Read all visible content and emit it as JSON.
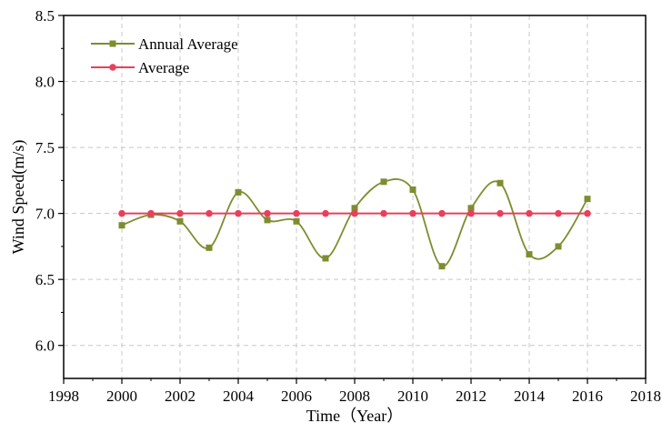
{
  "chart_data": {
    "type": "line",
    "title": "",
    "xlabel": "Time（Year）",
    "ylabel": "Wind Speed(m/s)",
    "xlim": [
      1998,
      2018
    ],
    "ylim": [
      5.75,
      8.5
    ],
    "xticks": [
      1998,
      2000,
      2002,
      2004,
      2006,
      2008,
      2010,
      2012,
      2014,
      2016,
      2018
    ],
    "yticks": [
      6.0,
      6.5,
      7.0,
      7.5,
      8.0,
      8.5
    ],
    "xtick_labels": [
      "1998",
      "2000",
      "2002",
      "2004",
      "2006",
      "2008",
      "2010",
      "2012",
      "2014",
      "2016",
      "2018"
    ],
    "ytick_labels": [
      "6.0",
      "6.5",
      "7.0",
      "7.5",
      "8.0",
      "8.5"
    ],
    "grid": true,
    "legend_position": "top-left",
    "series": [
      {
        "name": "Annual Average",
        "color": "#7f8c2f",
        "marker": "square",
        "x": [
          2000,
          2001,
          2002,
          2003,
          2004,
          2005,
          2006,
          2007,
          2008,
          2009,
          2010,
          2011,
          2012,
          2013,
          2014,
          2015,
          2016
        ],
        "y": [
          6.91,
          6.99,
          6.94,
          6.74,
          7.16,
          6.95,
          6.94,
          6.66,
          7.04,
          7.24,
          7.18,
          6.6,
          7.04,
          7.23,
          6.69,
          6.75,
          7.11
        ]
      },
      {
        "name": "Average",
        "color": "#e8405c",
        "marker": "circle",
        "x": [
          2000,
          2001,
          2002,
          2003,
          2004,
          2005,
          2006,
          2007,
          2008,
          2009,
          2010,
          2011,
          2012,
          2013,
          2014,
          2015,
          2016
        ],
        "y": [
          7.0,
          7.0,
          7.0,
          7.0,
          7.0,
          7.0,
          7.0,
          7.0,
          7.0,
          7.0,
          7.0,
          7.0,
          7.0,
          7.0,
          7.0,
          7.0,
          7.0
        ]
      }
    ]
  }
}
